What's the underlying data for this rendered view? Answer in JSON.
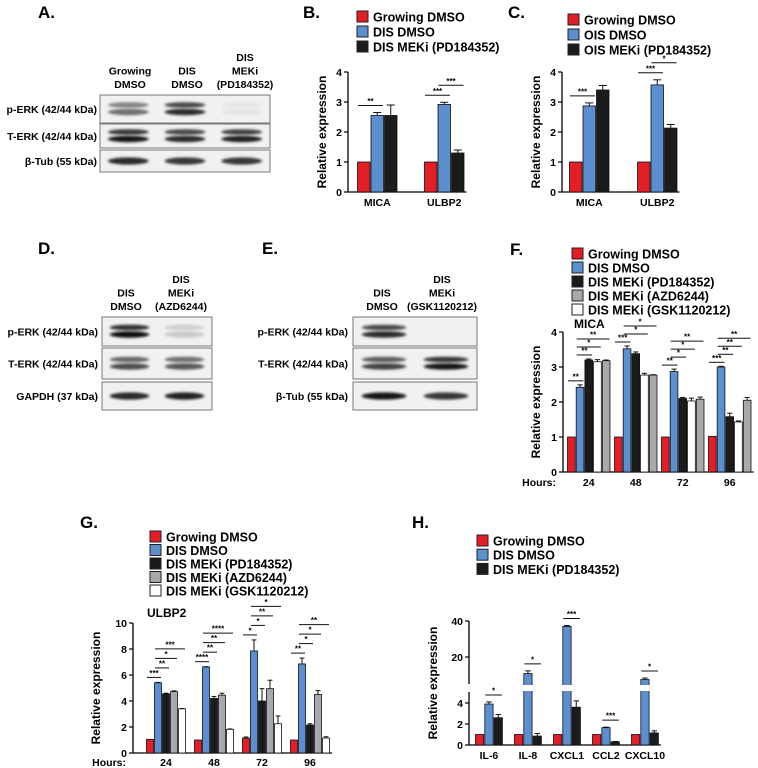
{
  "colors": {
    "red": "#e31e26",
    "blue": "#5b8fd0",
    "black": "#1b1b1b",
    "gray": "#a8a9ad",
    "white": "#ffffff"
  },
  "panels": {
    "A": "A.",
    "B": "B.",
    "C": "C.",
    "D": "D.",
    "E": "E.",
    "F": "F.",
    "G": "G.",
    "H": "H."
  },
  "blots": {
    "A": {
      "lanes": [
        [
          "Growing",
          "DMSO"
        ],
        [
          "DIS",
          "DMSO"
        ],
        [
          "DIS",
          "MEKi",
          "(PD184352)"
        ]
      ],
      "rows": [
        {
          "label": "p-ERK (42/44 kDa)",
          "bands": [
            0.55,
            0.85,
            0.03
          ]
        },
        {
          "label": "T-ERK (42/44 kDa)",
          "bands": [
            0.95,
            0.85,
            0.9
          ]
        },
        {
          "label": "β-Tub (55 kDa)",
          "bands": [
            0.85,
            0.8,
            0.8
          ]
        }
      ]
    },
    "D": {
      "lanes": [
        [
          "DIS",
          "DMSO"
        ],
        [
          "DIS",
          "MEKi",
          "(AZD6244)"
        ]
      ],
      "rows": [
        {
          "label": "p-ERK (42/44 kDa)",
          "bands": [
            1.0,
            0.15
          ]
        },
        {
          "label": "T-ERK (42/44 kDa)",
          "bands": [
            0.7,
            0.65
          ]
        },
        {
          "label": "GAPDH (37 kDa)",
          "bands": [
            0.85,
            0.9
          ]
        }
      ]
    },
    "E": {
      "lanes": [
        [
          "DIS",
          "DMSO"
        ],
        [
          "DIS",
          "MEKi",
          "(GSK1120212)"
        ]
      ],
      "rows": [
        {
          "label": "p-ERK (42/44 kDa)",
          "bands": [
            0.85,
            0.0
          ]
        },
        {
          "label": "T-ERK (42/44 kDa)",
          "bands": [
            0.75,
            0.95
          ]
        },
        {
          "label": "β-Tub (55 kDa)",
          "bands": [
            0.95,
            0.8
          ]
        }
      ]
    }
  },
  "chart_data": [
    {
      "panel": "B",
      "type": "bar",
      "title": "",
      "xlabel": "",
      "ylabel": "Relative expression",
      "ylim": [
        0,
        4
      ],
      "yticks": [
        0,
        1,
        2,
        3,
        4
      ],
      "categories": [
        "MICA",
        "ULBP2"
      ],
      "series": [
        {
          "name": "Growing DMSO",
          "color": "red",
          "values": [
            1,
            1
          ],
          "errors": [
            0,
            0
          ]
        },
        {
          "name": "DIS DMSO",
          "color": "blue",
          "values": [
            2.55,
            2.92
          ],
          "errors": [
            0.1,
            0.07
          ]
        },
        {
          "name": "DIS MEKi (PD184352)",
          "color": "black",
          "values": [
            2.55,
            1.3
          ],
          "errors": [
            0.35,
            0.1
          ]
        }
      ],
      "significance": [
        {
          "group": 0,
          "from": 0,
          "to": 1,
          "label": "**"
        },
        {
          "group": 1,
          "from": 0,
          "to": 1,
          "label": "***"
        },
        {
          "group": 1,
          "from": 1,
          "to": 2,
          "label": "***"
        }
      ]
    },
    {
      "panel": "C",
      "type": "bar",
      "title": "",
      "xlabel": "",
      "ylabel": "Relative expression",
      "ylim": [
        0,
        4
      ],
      "yticks": [
        0,
        1,
        2,
        3,
        4
      ],
      "categories": [
        "MICA",
        "ULBP2"
      ],
      "series": [
        {
          "name": "Growing DMSO",
          "color": "red",
          "values": [
            1,
            1
          ],
          "errors": [
            0,
            0
          ]
        },
        {
          "name": "OIS DMSO",
          "color": "blue",
          "values": [
            2.87,
            3.57
          ],
          "errors": [
            0.1,
            0.17
          ]
        },
        {
          "name": "OIS MEKi (PD184352)",
          "color": "black",
          "values": [
            3.4,
            2.13
          ],
          "errors": [
            0.15,
            0.12
          ]
        }
      ],
      "significance": [
        {
          "group": 0,
          "from": 0,
          "to": 1,
          "label": "***"
        },
        {
          "group": 1,
          "from": 0,
          "to": 1,
          "label": "***"
        },
        {
          "group": 1,
          "from": 1,
          "to": 2,
          "label": "*"
        }
      ]
    },
    {
      "panel": "F",
      "type": "bar",
      "title": "MICA",
      "xlabel": "Hours:",
      "ylabel": "Relative expression",
      "ylim": [
        0,
        4
      ],
      "yticks": [
        0,
        1,
        2,
        3,
        4
      ],
      "categories": [
        "24",
        "48",
        "72",
        "96"
      ],
      "legend_order": [
        0,
        1,
        2,
        4,
        3
      ],
      "series": [
        {
          "name": "Growing DMSO",
          "color": "red",
          "values": [
            1,
            1,
            1,
            1.02
          ],
          "errors": [
            0,
            0,
            0,
            0
          ]
        },
        {
          "name": "DIS DMSO",
          "color": "blue",
          "values": [
            2.42,
            3.52,
            2.87,
            3.0
          ],
          "errors": [
            0.07,
            0.08,
            0.07,
            0.02
          ]
        },
        {
          "name": "DIS MEKi (PD184352)",
          "color": "black",
          "values": [
            3.2,
            3.38,
            2.1,
            1.58
          ],
          "errors": [
            0.03,
            0.05,
            0.03,
            0.1
          ]
        },
        {
          "name": "DIS MEKi (GSK1120212)",
          "color": "white",
          "values": [
            3.15,
            2.77,
            2.03,
            1.43
          ],
          "errors": [
            0.06,
            0.05,
            0.08,
            0.03
          ]
        },
        {
          "name": "DIS MEKi (AZD6244)",
          "color": "gray",
          "values": [
            3.18,
            2.77,
            2.08,
            2.05
          ],
          "errors": [
            0.02,
            0.01,
            0.06,
            0.08
          ]
        }
      ],
      "significance": [
        {
          "group": 0,
          "from": 0,
          "to": 1,
          "label": "**"
        },
        {
          "group": 0,
          "from": 1,
          "to": 2,
          "label": "**"
        },
        {
          "group": 0,
          "from": 1,
          "to": 3,
          "label": "*"
        },
        {
          "group": 0,
          "from": 1,
          "to": 4,
          "label": "**"
        },
        {
          "group": 1,
          "from": 0,
          "to": 1,
          "label": "***"
        },
        {
          "group": 1,
          "from": 1,
          "to": 3,
          "label": "*"
        },
        {
          "group": 1,
          "from": 1,
          "to": 4,
          "label": "*"
        },
        {
          "group": 2,
          "from": 0,
          "to": 1,
          "label": "**"
        },
        {
          "group": 2,
          "from": 1,
          "to": 2,
          "label": "*"
        },
        {
          "group": 2,
          "from": 1,
          "to": 3,
          "label": "*"
        },
        {
          "group": 2,
          "from": 1,
          "to": 4,
          "label": "**"
        },
        {
          "group": 3,
          "from": 0,
          "to": 1,
          "label": "***"
        },
        {
          "group": 3,
          "from": 1,
          "to": 2,
          "label": "**"
        },
        {
          "group": 3,
          "from": 1,
          "to": 3,
          "label": "**"
        },
        {
          "group": 3,
          "from": 1,
          "to": 4,
          "label": "**"
        }
      ]
    },
    {
      "panel": "G",
      "type": "bar",
      "title": "ULBP2",
      "xlabel": "Hours:",
      "ylabel": "Relative expression",
      "ylim": [
        0,
        10
      ],
      "yticks": [
        0,
        2,
        4,
        6,
        8,
        10
      ],
      "categories": [
        "24",
        "48",
        "72",
        "96"
      ],
      "series": [
        {
          "name": "Growing DMSO",
          "color": "red",
          "values": [
            1.05,
            1.0,
            1.15,
            1.0
          ],
          "errors": [
            0,
            0,
            0.08,
            0
          ]
        },
        {
          "name": "DIS DMSO",
          "color": "blue",
          "values": [
            5.4,
            6.62,
            7.85,
            6.85
          ],
          "errors": [
            0.03,
            0.02,
            0.85,
            0.45
          ]
        },
        {
          "name": "DIS MEKi (PD184352)",
          "color": "black",
          "values": [
            4.55,
            4.2,
            4.0,
            2.15
          ],
          "errors": [
            0.05,
            0.15,
            0.95,
            0.1
          ]
        },
        {
          "name": "DIS MEKi (AZD6244)",
          "color": "gray",
          "values": [
            4.72,
            4.45,
            4.95,
            4.5
          ],
          "errors": [
            0.06,
            0.15,
            0.65,
            0.3
          ]
        },
        {
          "name": "DIS MEKi (GSK1120212)",
          "color": "white",
          "values": [
            3.4,
            1.82,
            2.25,
            1.15
          ],
          "errors": [
            0.02,
            0.03,
            0.6,
            0.1
          ]
        }
      ],
      "significance": [
        {
          "group": 0,
          "from": 0,
          "to": 1,
          "label": "***"
        },
        {
          "group": 0,
          "from": 1,
          "to": 2,
          "label": "**"
        },
        {
          "group": 0,
          "from": 1,
          "to": 3,
          "label": "*"
        },
        {
          "group": 0,
          "from": 1,
          "to": 4,
          "label": "***"
        },
        {
          "group": 1,
          "from": 0,
          "to": 1,
          "label": "****"
        },
        {
          "group": 1,
          "from": 1,
          "to": 2,
          "label": "**"
        },
        {
          "group": 1,
          "from": 1,
          "to": 3,
          "label": "**"
        },
        {
          "group": 1,
          "from": 1,
          "to": 4,
          "label": "****"
        },
        {
          "group": 2,
          "from": 0,
          "to": 1,
          "label": "*"
        },
        {
          "group": 2,
          "from": 1,
          "to": 2,
          "label": "*"
        },
        {
          "group": 2,
          "from": 1,
          "to": 3,
          "label": "**"
        },
        {
          "group": 2,
          "from": 1,
          "to": 4,
          "label": "*"
        },
        {
          "group": 3,
          "from": 0,
          "to": 1,
          "label": "**"
        },
        {
          "group": 3,
          "from": 1,
          "to": 2,
          "label": "*"
        },
        {
          "group": 3,
          "from": 1,
          "to": 3,
          "label": "*"
        },
        {
          "group": 3,
          "from": 1,
          "to": 4,
          "label": "**"
        }
      ]
    },
    {
      "panel": "H",
      "type": "bar",
      "title": "",
      "xlabel": "",
      "ylabel": "Relative expression",
      "ylim": [
        0,
        40
      ],
      "axis_break": [
        5,
        5
      ],
      "yticks": [
        0,
        2,
        4,
        20,
        40
      ],
      "categories": [
        "IL-6",
        "IL-8",
        "CXCL1",
        "CCL2",
        "CXCL10"
      ],
      "series": [
        {
          "name": "Growing DMSO",
          "color": "red",
          "values": [
            1,
            1,
            1,
            1,
            1
          ],
          "errors": [
            0,
            0,
            0,
            0,
            0
          ]
        },
        {
          "name": "DIS DMSO",
          "color": "blue",
          "values": [
            3.9,
            10.8,
            37,
            1.65,
            7.5
          ],
          "errors": [
            0.2,
            1.5,
            0.5,
            0.05,
            0.8
          ]
        },
        {
          "name": "DIS MEKi (PD184352)",
          "color": "black",
          "values": [
            2.6,
            0.85,
            3.6,
            0.3,
            1.15
          ],
          "errors": [
            0.3,
            0.25,
            0.6,
            0.03,
            0.2
          ]
        }
      ],
      "significance": [
        {
          "group": 0,
          "from": 1,
          "to": 2,
          "label": "*"
        },
        {
          "group": 1,
          "from": 1,
          "to": 2,
          "label": "*"
        },
        {
          "group": 2,
          "from": 1,
          "to": 2,
          "label": "***"
        },
        {
          "group": 3,
          "from": 1,
          "to": 2,
          "label": "***"
        },
        {
          "group": 4,
          "from": 1,
          "to": 2,
          "label": "*"
        }
      ]
    }
  ]
}
